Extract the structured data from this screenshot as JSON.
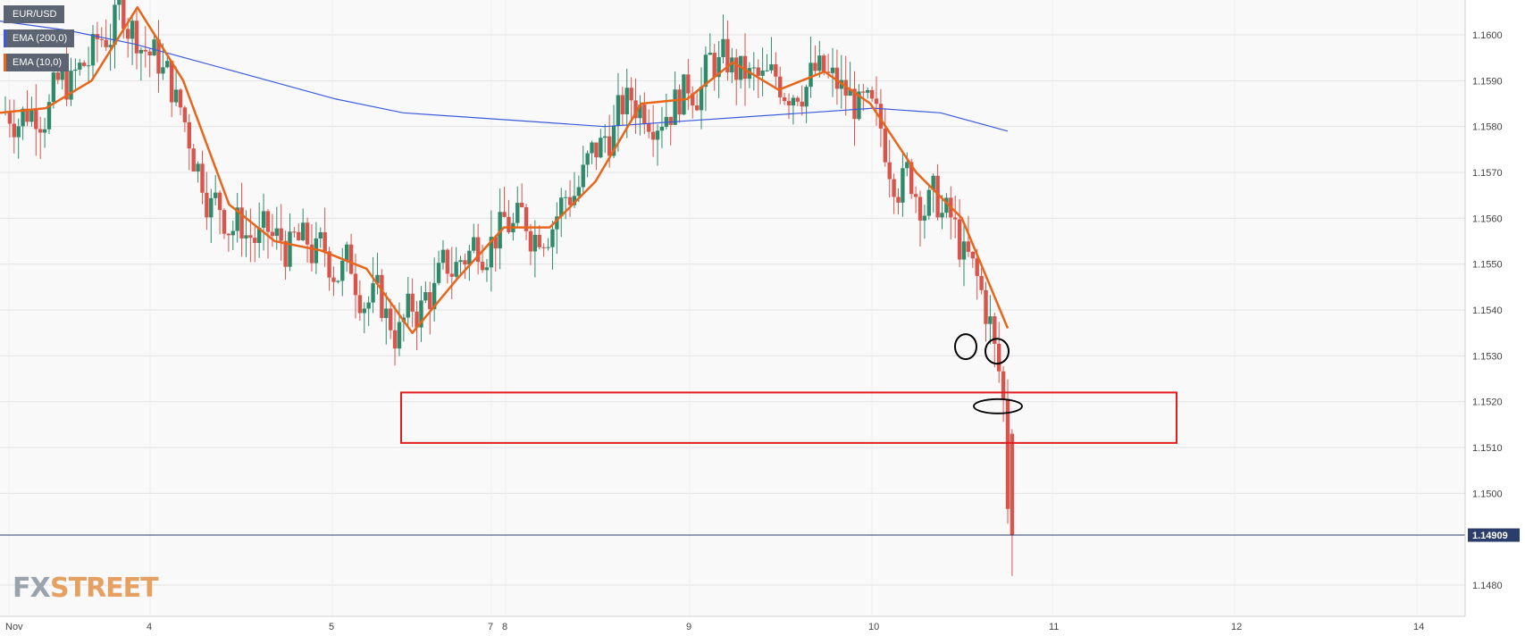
{
  "legend": {
    "symbol": "EUR/USD",
    "ema200": "EMA (200,0)",
    "ema10": "EMA (10,0)",
    "ema200_color": "#3b5bdb",
    "ema10_color": "#e8651a"
  },
  "logo": {
    "part1": "FX",
    "part2": "STREET"
  },
  "current_price_label": "1.14909",
  "colors": {
    "up": "#2f8a6a",
    "down": "#d9544a",
    "zone": "#e01e1e",
    "price_line": "#2b3e6b",
    "grid": "#e3e3e3"
  },
  "chart_data": {
    "type": "candlestick",
    "symbol": "EUR/USD",
    "y_ticks": [
      "1.1600",
      "1.1590",
      "1.1580",
      "1.1570",
      "1.1560",
      "1.1550",
      "1.1540",
      "1.1530",
      "1.1520",
      "1.1510",
      "1.1500",
      "1.1480"
    ],
    "ylim": [
      1.1472,
      1.1607
    ],
    "x_ticks": [
      "Nov",
      "4",
      "5",
      "7",
      "8",
      "9",
      "10",
      "11",
      "12",
      "14"
    ],
    "current_price": 1.14909,
    "support_zone": {
      "from": 1.1511,
      "to": 1.1522
    },
    "ema200": [
      1.1603,
      1.1601,
      1.1598,
      1.1594,
      1.159,
      1.1586,
      1.1583,
      1.1582,
      1.1581,
      1.158,
      1.1581,
      1.1582,
      1.1583,
      1.1584,
      1.1583,
      1.1579
    ],
    "ema10": [
      1.1583,
      1.1584,
      1.159,
      1.1606,
      1.159,
      1.1563,
      1.1555,
      1.1553,
      1.1549,
      1.1535,
      1.1547,
      1.1558,
      1.1558,
      1.1568,
      1.1585,
      1.1586,
      1.1594,
      1.1588,
      1.1592,
      1.1585,
      1.157,
      1.156,
      1.1536
    ],
    "candles_count": 230,
    "annotations": [
      "circle",
      "circle",
      "ellipse",
      "rectangle"
    ]
  }
}
